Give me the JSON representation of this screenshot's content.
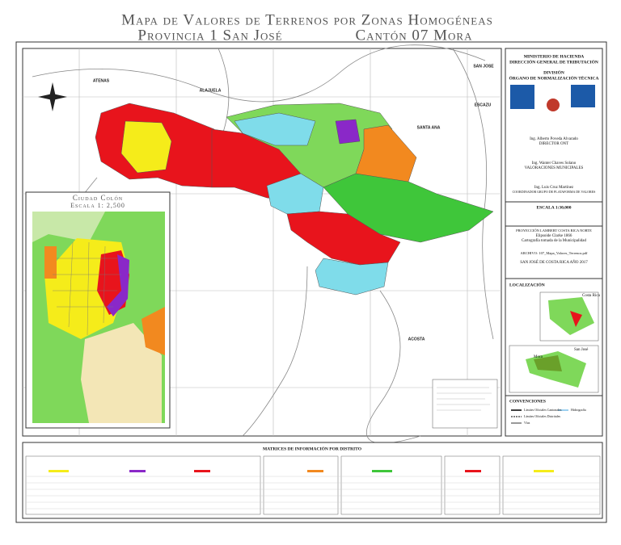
{
  "title": {
    "line1": "Mapa de Valores de Terrenos por Zonas Homogéneas",
    "province": "Provincia 1 San José",
    "canton": "Cantón 07 Mora"
  },
  "map_labels": [
    "ATENAS",
    "ALAJUELA",
    "SAN JOSE",
    "ESCAZU",
    "SANTA ANA",
    "ACOSTA"
  ],
  "inset": {
    "title": "Ciudad Colón",
    "scale": "Escala 1: 2,500"
  },
  "panel": {
    "ministry": "MINISTERIO DE HACIENDA",
    "direction": "DIRECCIÓN GENERAL DE TRIBUTACIÓN",
    "division": "DIVISIÓN",
    "organ": "ÓRGANO DE NORMALIZACIÓN TÉCNICA",
    "signers": [
      {
        "name": "Ing. Alberto Poveda Alvarado",
        "role": "DIRECTOR ONT"
      },
      {
        "name": "Ing. Wanter Chaves Solano",
        "role": "VALORACIONES MUNICIPALES"
      },
      {
        "name": "Ing. Luis Cruz Martínez",
        "role": "COORDINADOR GRUPO DE PLATAFORMA DE VALORES"
      }
    ],
    "scale": "ESCALA 1:30,000",
    "projection": "PROYECCIÓN LAMBERT COSTA RICA NORTE",
    "ellipsoid": "Elipsoide Clarke 1866",
    "source": "Cartografía tomada de la Municipalidad",
    "file": "ARCHIVO: 107_Mapa_Valores_Terrenos.pdf",
    "place": "SAN JOSÉ DE COSTA RICA   AÑO 2017",
    "location": "LOCALIZACIÓN",
    "country": "Costa Rica",
    "province": "San José",
    "canton": "Mora",
    "conventions": "CONVENCIONES",
    "legend": [
      "Límites Oficiales Cantonales",
      "Hidrografía",
      "Límites Oficiales Distritales",
      "Vías"
    ]
  },
  "bottom": {
    "title": "MATRICES DE INFORMACIÓN POR DISTRITO"
  }
}
